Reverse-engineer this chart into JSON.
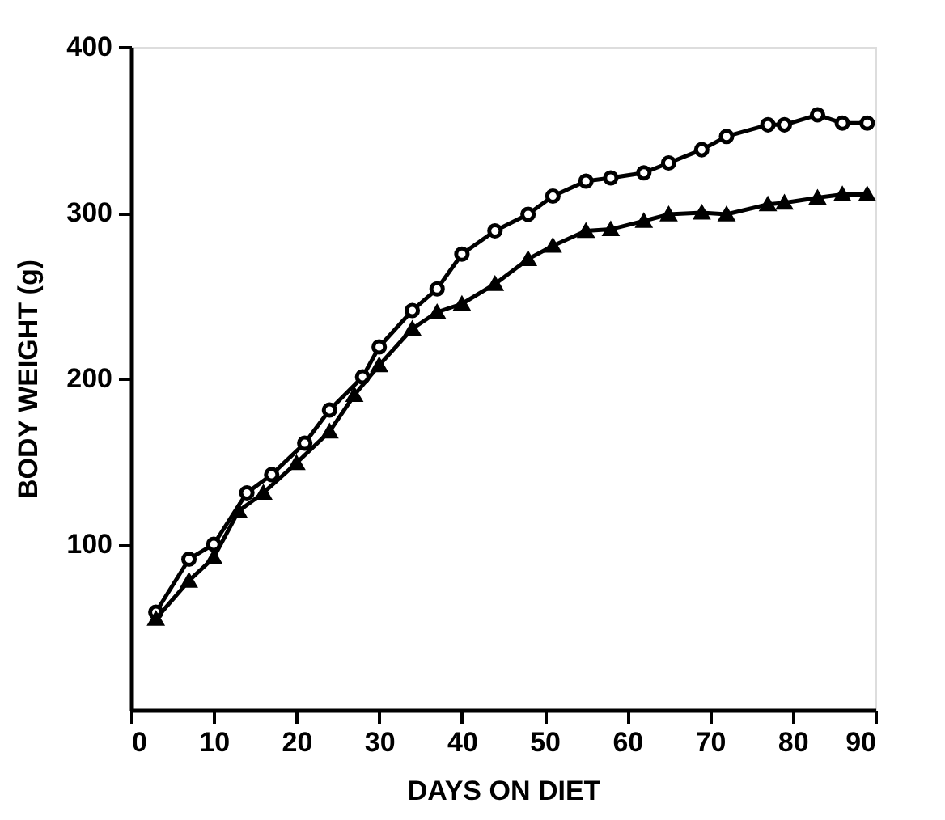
{
  "chart_data": {
    "type": "line",
    "xlabel": "DAYS ON DIET",
    "ylabel": "BODY WEIGHT (g)",
    "xlim": [
      0,
      90
    ],
    "xticks": [
      0,
      10,
      20,
      30,
      40,
      50,
      60,
      70,
      80,
      90
    ],
    "ylim": [
      0,
      400
    ],
    "yticks": [
      100,
      200,
      300,
      400
    ],
    "grid": false,
    "line_style": "solid",
    "series": [
      {
        "color": "#000000",
        "marker": "circle",
        "x": [
          3,
          7,
          10,
          14,
          17,
          21,
          24,
          28,
          30,
          34,
          37,
          40,
          44,
          48,
          51,
          55,
          58,
          62,
          65,
          69,
          72,
          77,
          79,
          83,
          86,
          89
        ],
        "values": [
          59,
          91,
          100,
          131,
          142,
          161,
          181,
          201,
          219,
          241,
          254,
          275,
          289,
          299,
          310,
          319,
          321,
          324,
          330,
          338,
          346,
          353,
          353,
          359,
          354,
          354
        ]
      },
      {
        "color": "#000000",
        "marker": "triangle",
        "x": [
          3,
          7,
          10,
          13,
          16,
          20,
          24,
          27,
          30,
          34,
          37,
          40,
          44,
          48,
          51,
          55,
          58,
          62,
          65,
          69,
          72,
          77,
          79,
          83,
          86,
          89
        ],
        "values": [
          55,
          78,
          92,
          120,
          131,
          149,
          168,
          190,
          208,
          230,
          240,
          245,
          257,
          272,
          280,
          289,
          290,
          295,
          299,
          300,
          299,
          305,
          306,
          309,
          311,
          311
        ]
      }
    ]
  }
}
